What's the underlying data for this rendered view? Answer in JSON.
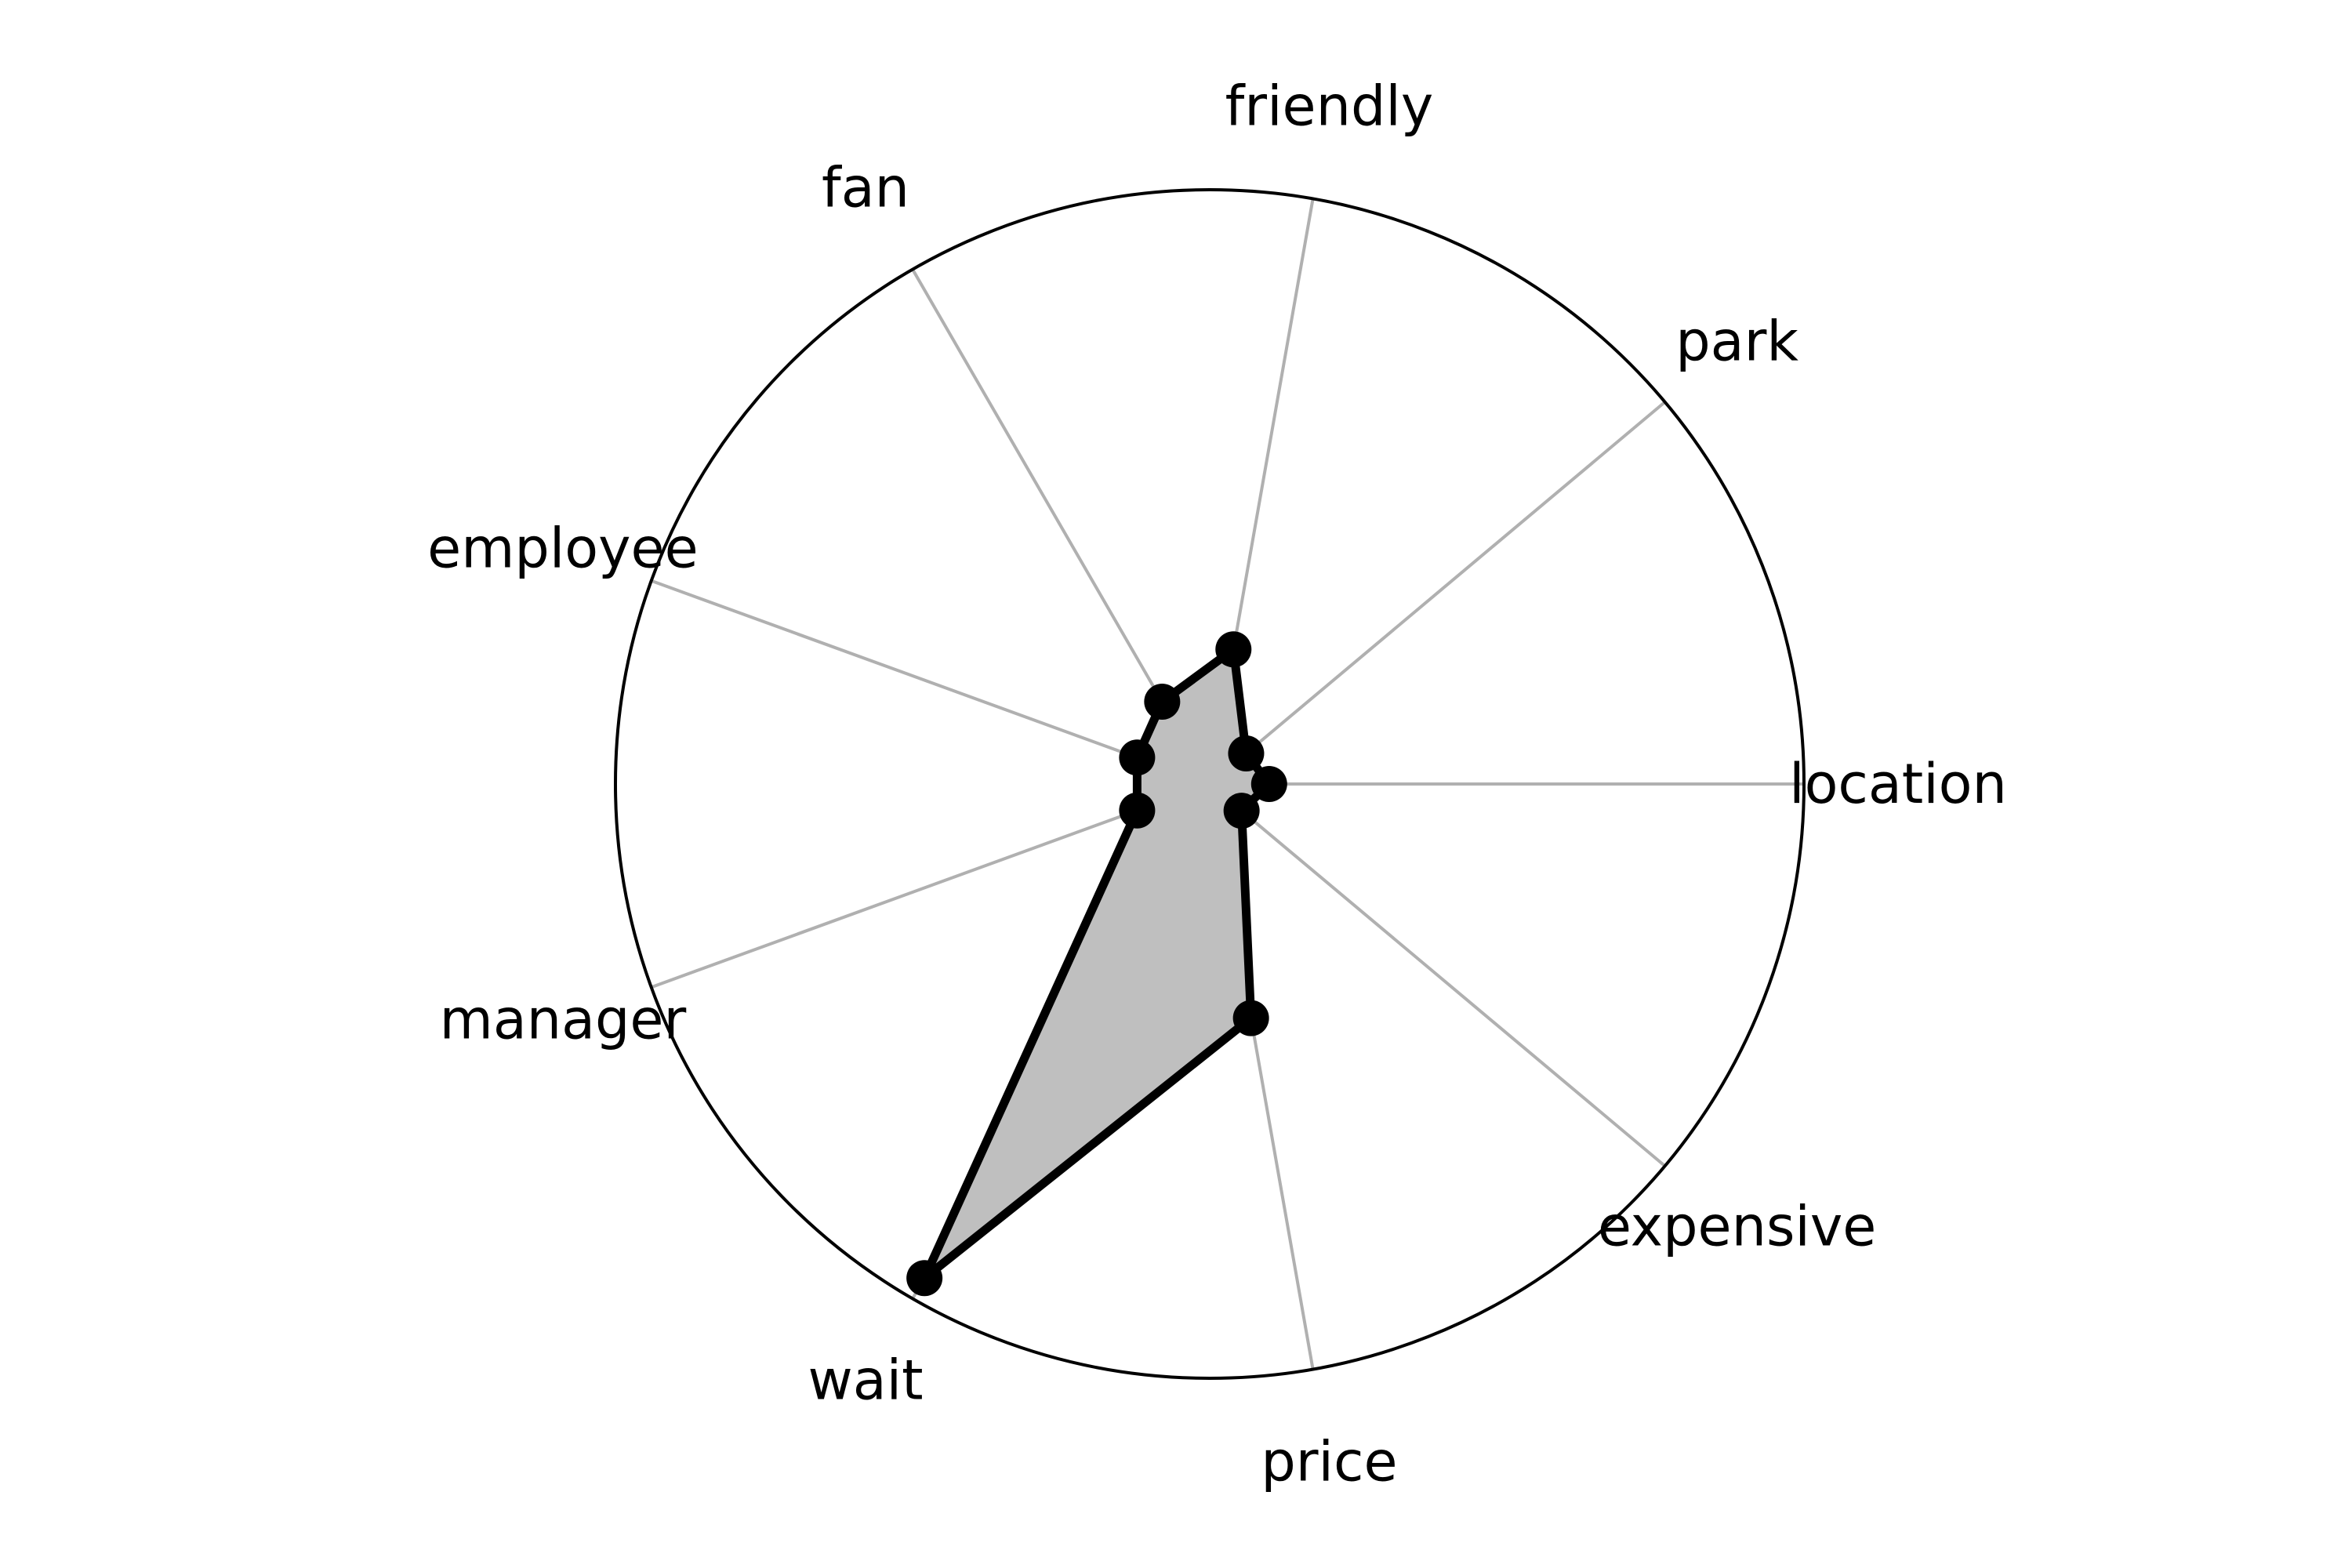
{
  "chart_data": {
    "type": "radar",
    "title": "",
    "categories": [
      "location",
      "park",
      "friendly",
      "fan",
      "employee",
      "manager",
      "wait",
      "price",
      "expensive"
    ],
    "values": [
      0.1,
      0.08,
      0.23,
      0.16,
      0.13,
      0.13,
      0.96,
      0.4,
      0.07
    ],
    "rlim": [
      0,
      1
    ],
    "grid": true,
    "legend": "none",
    "colors": {
      "line": "#000000",
      "fill": "#bfbfbf",
      "spoke": "#b0b0b0",
      "frame": "#000000"
    }
  }
}
